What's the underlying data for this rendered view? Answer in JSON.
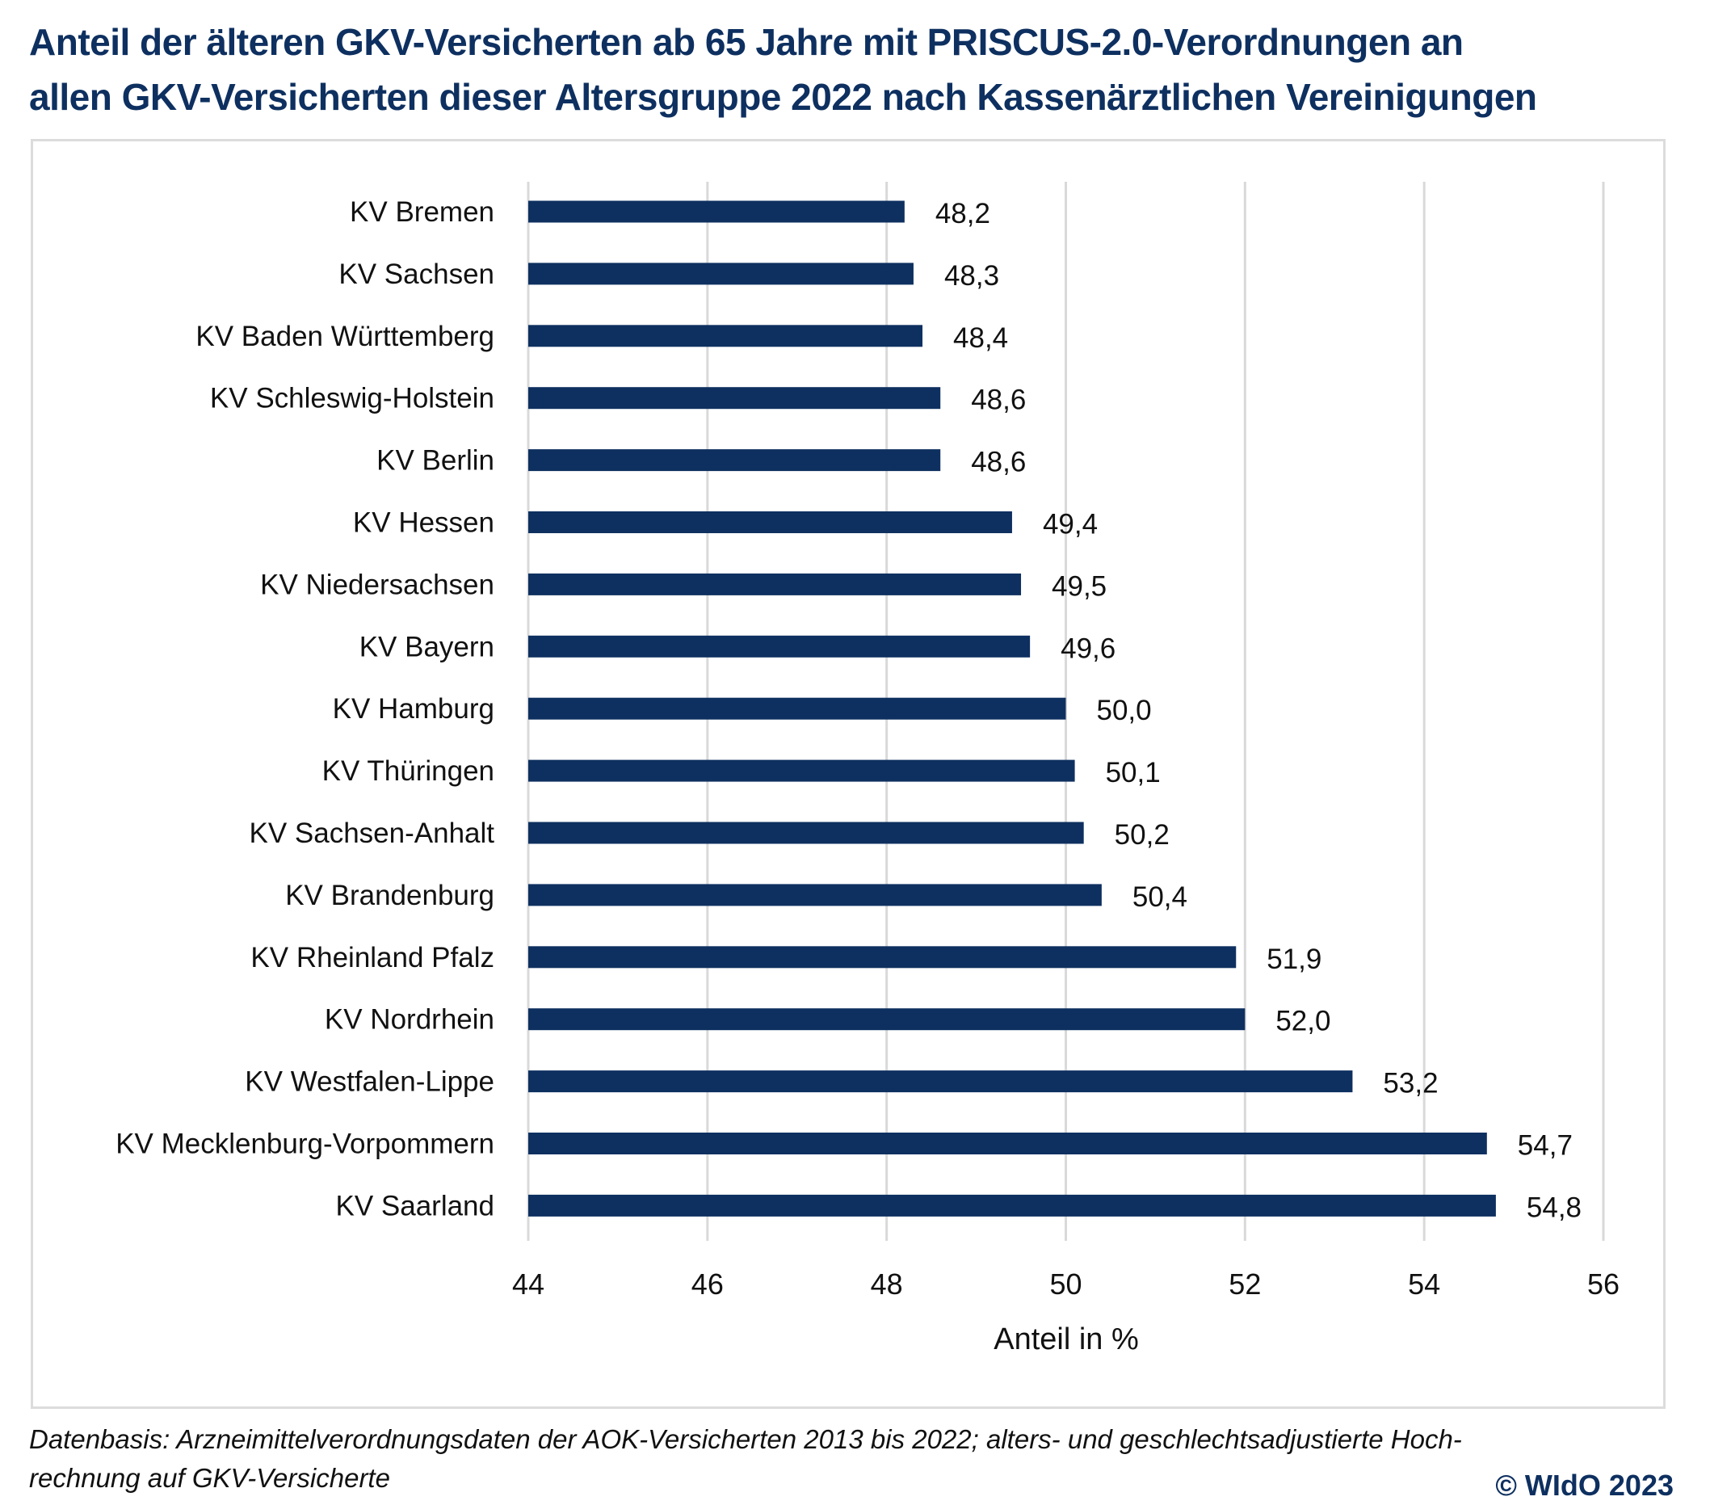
{
  "title": {
    "line1": "Anteil der älteren GKV-Versicherten ab 65 Jahre mit PRISCUS-2.0-Verordnungen an",
    "line2": "allen GKV-Versicherten dieser Altersgruppe 2022 nach Kassenärztlichen Vereinigungen"
  },
  "footnote": {
    "line1": "Datenbasis: Arzneimittelverordnungsdaten der AOK-Versicherten 2013 bis 2022; alters- und geschlechtsadjustierte Hoch-",
    "line2": "rechnung auf GKV-Versicherte"
  },
  "copyright": "© WIdO 2023",
  "colors": {
    "bar": "#0e3060",
    "title": "#0e3060",
    "grid": "#d9d9d9"
  },
  "chart_data": {
    "type": "bar",
    "orientation": "horizontal",
    "title": "Anteil der älteren GKV-Versicherten ab 65 Jahre mit PRISCUS-2.0-Verordnungen an allen GKV-Versicherten dieser Altersgruppe 2022 nach Kassenärztlichen Vereinigungen",
    "xlabel": "Anteil in %",
    "ylabel": "",
    "xlim": [
      44,
      56
    ],
    "xticks": [
      44,
      46,
      48,
      50,
      52,
      54,
      56
    ],
    "xtick_labels": [
      "44",
      "46",
      "48",
      "50",
      "52",
      "54",
      "56"
    ],
    "grid": "vertical",
    "legend": "none",
    "categories": [
      "KV Bremen",
      "KV Sachsen",
      "KV Baden Württemberg",
      "KV Schleswig-Holstein",
      "KV Berlin",
      "KV Hessen",
      "KV Niedersachsen",
      "KV Bayern",
      "KV Hamburg",
      "KV Thüringen",
      "KV Sachsen-Anhalt",
      "KV Brandenburg",
      "KV Rheinland Pfalz",
      "KV Nordrhein",
      "KV Westfalen-Lippe",
      "KV Mecklenburg-Vorpommern",
      "KV Saarland"
    ],
    "values": [
      48.2,
      48.3,
      48.4,
      48.6,
      48.6,
      49.4,
      49.5,
      49.6,
      50.0,
      50.1,
      50.2,
      50.4,
      51.9,
      52.0,
      53.2,
      54.7,
      54.8
    ],
    "value_labels": [
      "48,2",
      "48,3",
      "48,4",
      "48,6",
      "48,6",
      "49,4",
      "49,5",
      "49,6",
      "50,0",
      "50,1",
      "50,2",
      "50,4",
      "51,9",
      "52,0",
      "53,2",
      "54,7",
      "54,8"
    ]
  }
}
